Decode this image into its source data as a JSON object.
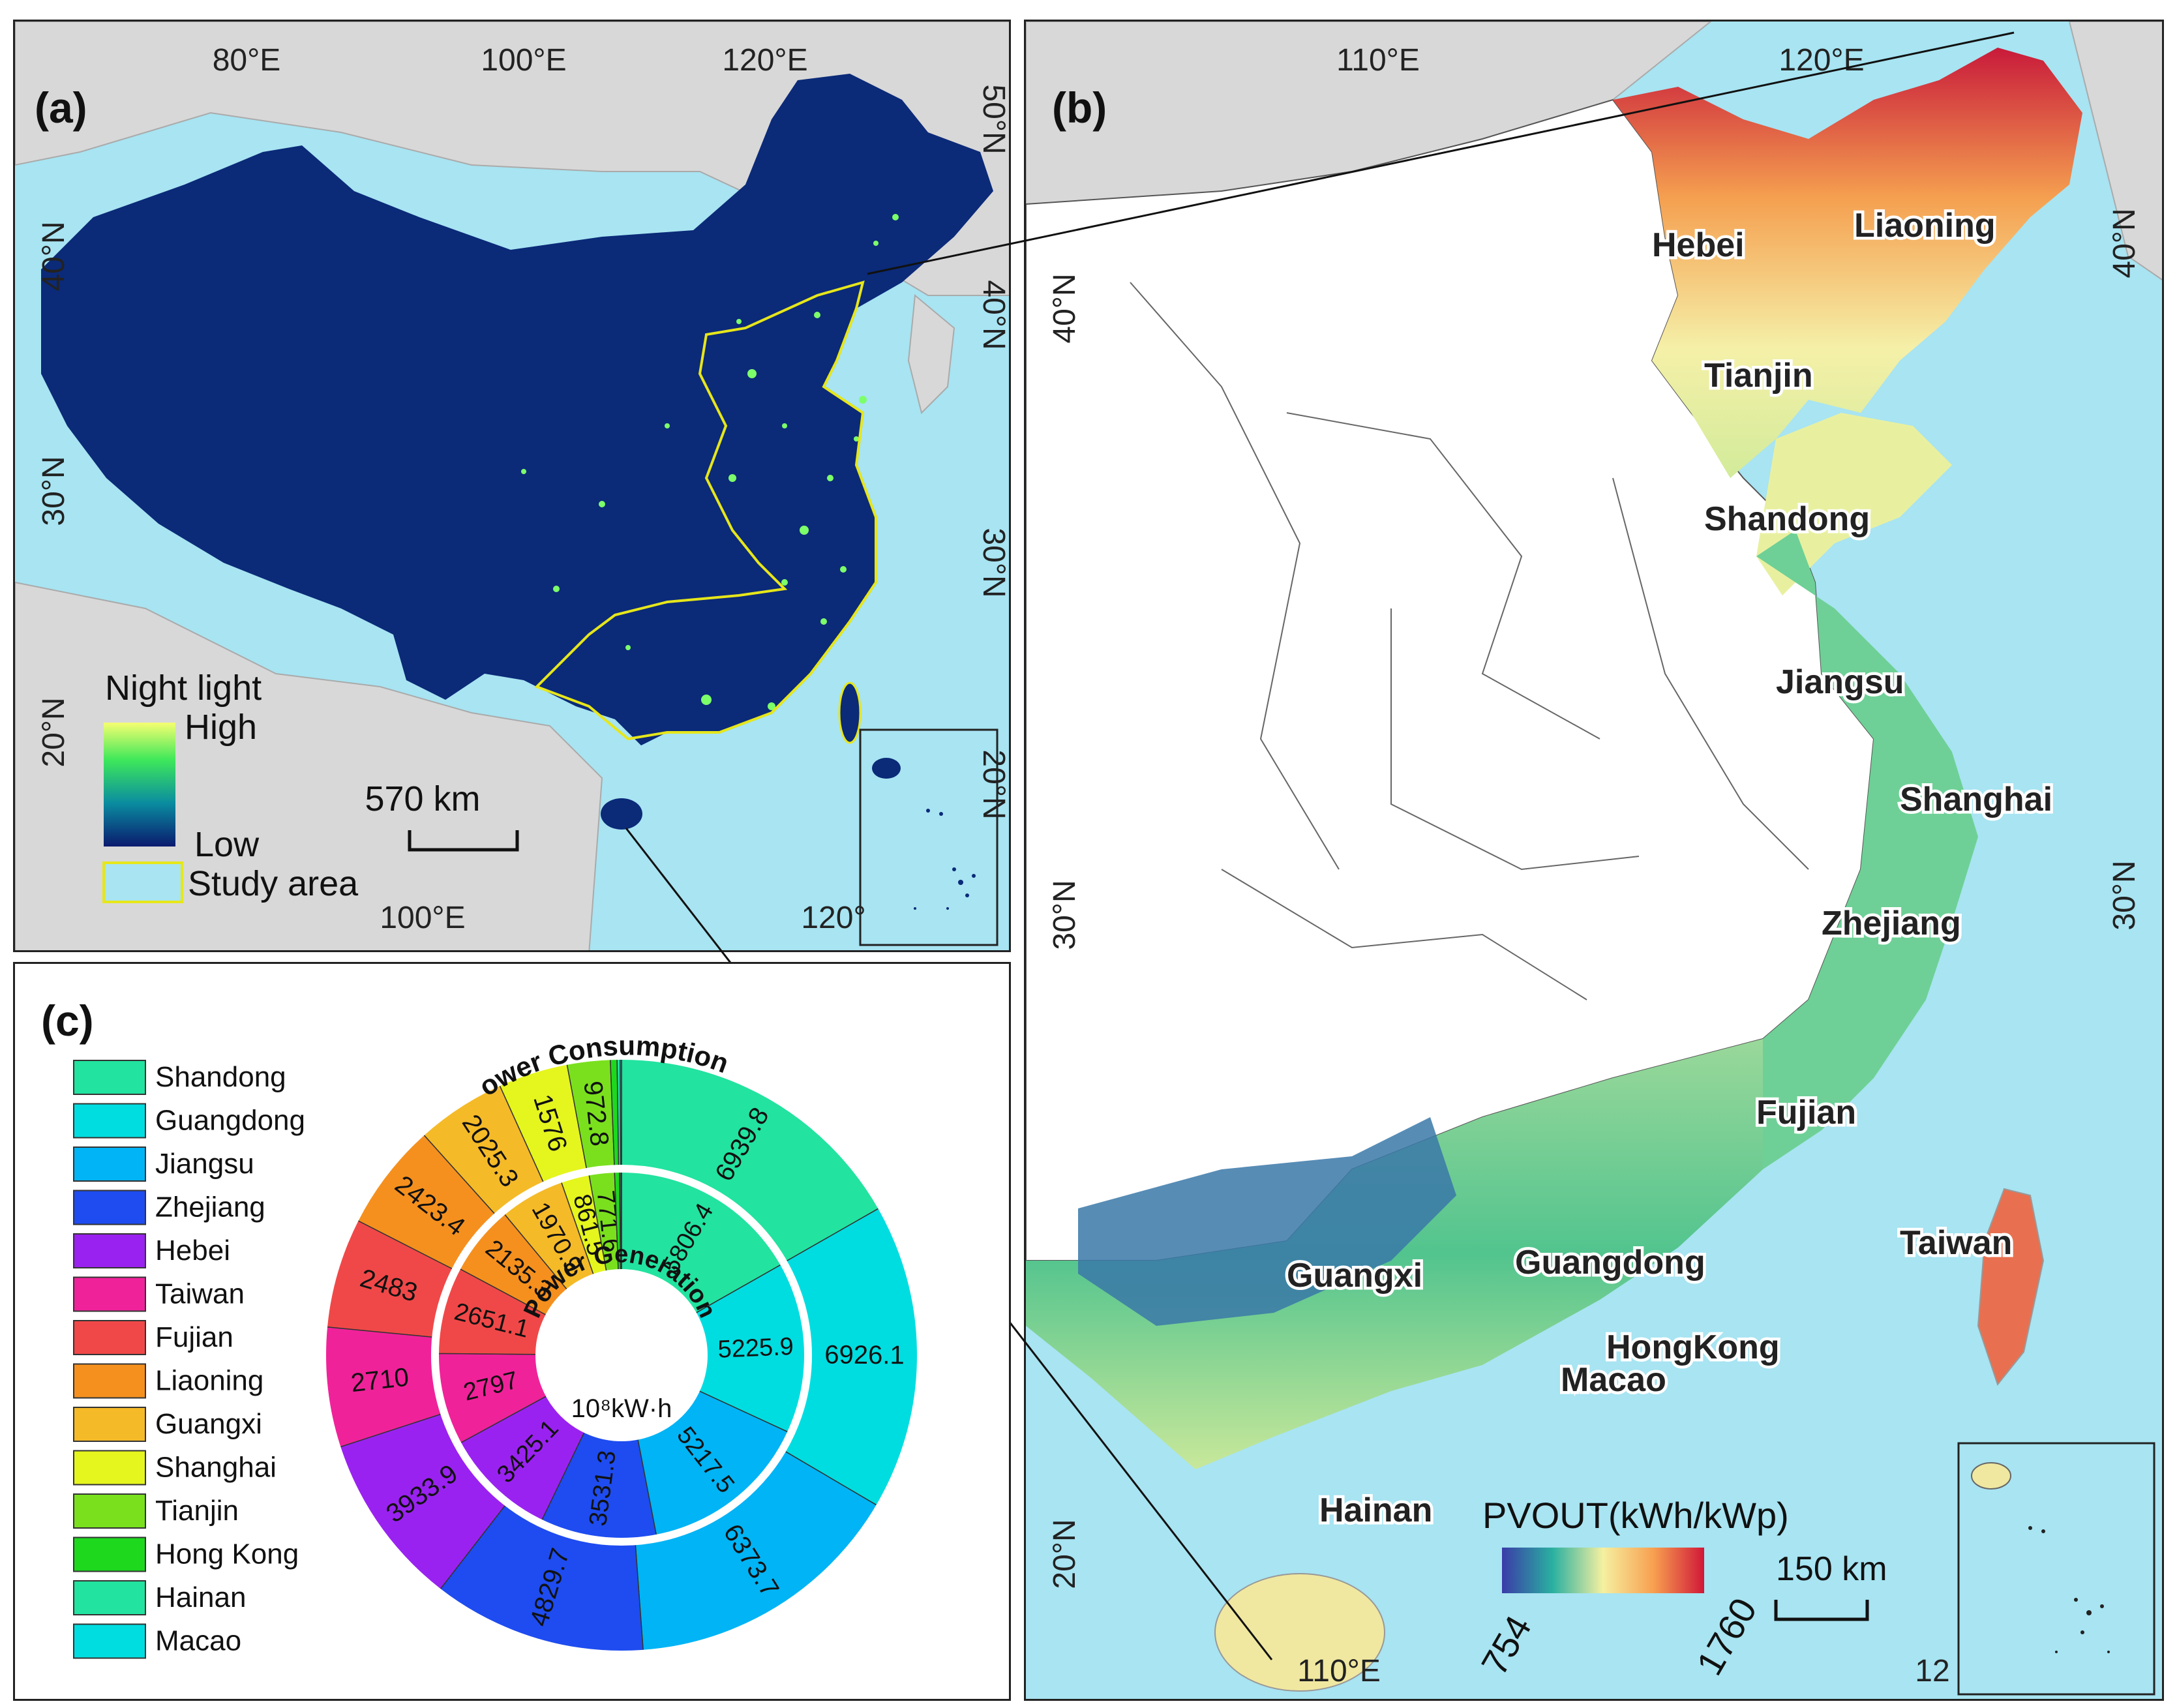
{
  "panel_a": {
    "letter": "(a)",
    "lon_labels_top": [
      "80°E",
      "100°E",
      "120°E"
    ],
    "lat_labels_left": [
      "40°N",
      "30°N",
      "20°N"
    ],
    "lat_labels_right": [
      "50°N",
      "40°N",
      "30°N",
      "20°N"
    ],
    "lon_labels_bottom": [
      "100°E",
      "120°"
    ],
    "legend": {
      "title": "Night light",
      "high": "High",
      "low": "Low",
      "study_area": "Study area",
      "high_color": "#f5ff70",
      "low_color": "#0a1a6e",
      "study_area_color": "#e6e61a"
    },
    "scale_bar": "570 km"
  },
  "panel_b": {
    "letter": "(b)",
    "lon_labels_top": [
      "110°E",
      "120°E"
    ],
    "lon_labels_bottom": [
      "110°E",
      "12"
    ],
    "lat_labels_left": [
      "40°N",
      "30°N",
      "20°N"
    ],
    "lat_labels_right": [
      "40°N",
      "30°N"
    ],
    "provinces": [
      "Hebei",
      "Liaoning",
      "Tianjin",
      "Shandong",
      "Jiangsu",
      "Shanghai",
      "Zhejiang",
      "Fujian",
      "Taiwan",
      "Guangxi",
      "Guangdong",
      "HongKong",
      "Macao",
      "Hainan"
    ],
    "legend": {
      "title": "PVOUT(kWh/kWp)",
      "min": "754",
      "max": "1760",
      "colors": [
        "#3a3ca8",
        "#2ab0a0",
        "#f5f0a0",
        "#f7a050",
        "#d01838"
      ]
    },
    "scale_bar": "150  km"
  },
  "panel_c": {
    "letter": "(c)",
    "outer_title": "Power Consumption",
    "inner_title": "Power Generation",
    "unit": "10⁸kW·h",
    "legend": [
      {
        "name": "Shandong",
        "color": "#22e3a0"
      },
      {
        "name": "Guangdong",
        "color": "#00dde0"
      },
      {
        "name": "Jiangsu",
        "color": "#00b4f5"
      },
      {
        "name": "Zhejiang",
        "color": "#1e4cf0"
      },
      {
        "name": "Hebei",
        "color": "#9a22f0"
      },
      {
        "name": "Taiwan",
        "color": "#f0229a"
      },
      {
        "name": "Fujian",
        "color": "#f04848"
      },
      {
        "name": "Liaoning",
        "color": "#f5901e"
      },
      {
        "name": "Guangxi",
        "color": "#f5ba28"
      },
      {
        "name": "Shanghai",
        "color": "#e5f51e"
      },
      {
        "name": "Tianjin",
        "color": "#7ae01e"
      },
      {
        "name": "Hong Kong",
        "color": "#1ed81e"
      },
      {
        "name": "Hainan",
        "color": "#22e3a0"
      },
      {
        "name": "Macao",
        "color": "#00dde0"
      }
    ]
  },
  "chart_data": {
    "type": "pie",
    "title": "",
    "series": [
      {
        "name": "Power Consumption",
        "labels": [
          "Shandong",
          "Guangdong",
          "Jiangsu",
          "Zhejiang",
          "Hebei",
          "Taiwan",
          "Fujian",
          "Liaoning",
          "Guangxi",
          "Shanghai",
          "Tianjin",
          "Hong Kong",
          "Hainan",
          "Macao"
        ],
        "values": [
          6939.8,
          6926.1,
          6373.7,
          4829.7,
          3933.9,
          2710,
          2483,
          2423.4,
          2025.3,
          1576,
          972.8,
          150,
          70,
          30
        ],
        "value_labels": [
          "6939.8",
          "6926.1",
          "6373.7",
          "4829.7",
          "3933.9",
          "2710",
          "2483",
          "2423.4",
          "2025.3",
          "1576",
          "972.8",
          "",
          "",
          ""
        ]
      },
      {
        "name": "Power Generation",
        "labels": [
          "Shandong",
          "Guangdong",
          "Jiangsu",
          "Zhejiang",
          "Hebei",
          "Taiwan",
          "Fujian",
          "Liaoning",
          "Guangxi",
          "Shanghai",
          "Tianjin",
          "Hong Kong",
          "Hainan",
          "Macao"
        ],
        "values": [
          5806.4,
          5225.9,
          5217.5,
          3531.3,
          3425.1,
          2797,
          2651.1,
          2135.3,
          1970.9,
          861.5,
          771.6,
          150,
          40,
          20
        ],
        "value_labels": [
          "5806.4",
          "5225.9",
          "5217.5",
          "3531.3",
          "3425.1",
          "2797",
          "2651.1",
          "2135.3",
          "1970.9",
          "861.5",
          "771.6",
          "",
          "",
          ""
        ]
      }
    ]
  }
}
